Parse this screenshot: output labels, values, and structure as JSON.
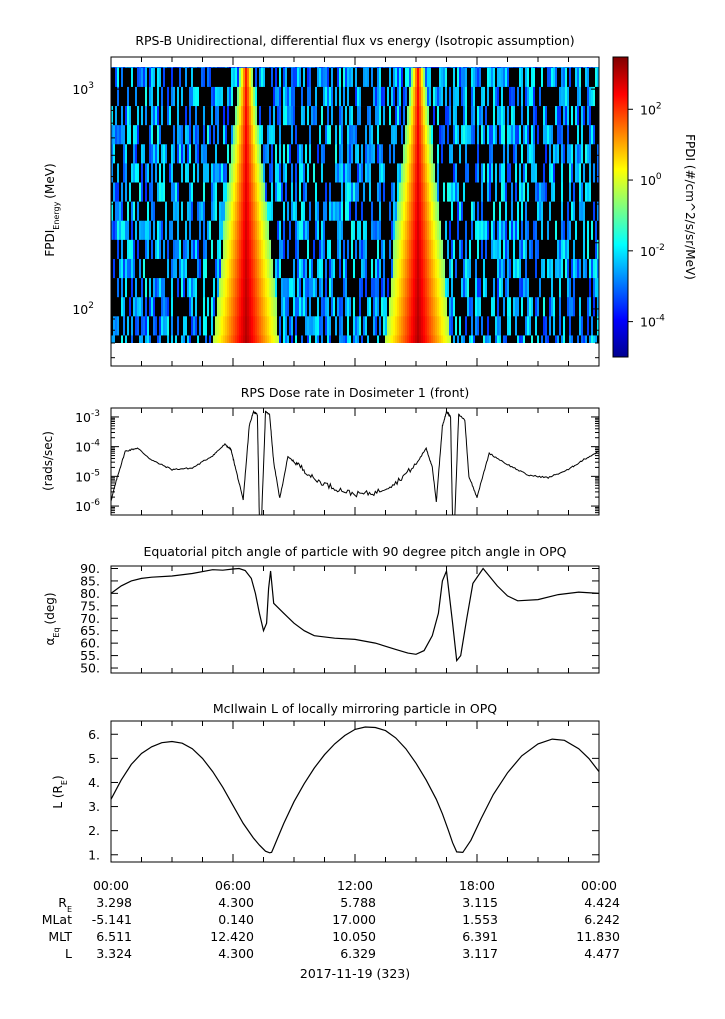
{
  "chart_data": [
    {
      "type": "heatmap",
      "title": "RPS-B  Unidirectional, differential flux vs energy (Isotropic assumption)",
      "ylabel": "FPDI",
      "ylabel_sub": "Energy",
      "ylabel_unit": "(MeV)",
      "yscale": "log",
      "ylim": [
        55,
        1400
      ],
      "y_ticks": [
        {
          "value": 100,
          "base": "10",
          "exp": "2"
        },
        {
          "value": 1000,
          "base": "10",
          "exp": "3"
        }
      ],
      "xlim_hours": [
        0,
        24
      ],
      "features": {
        "flux_peaks_hours": [
          6.7,
          15.1
        ],
        "peak_center_hours": [
          6.65,
          15.1
        ],
        "noise_rows": 15
      },
      "colorbar": {
        "label": "FPDI (#/cm^2/s/sr/MeV)",
        "scale": "log",
        "range": [
          1e-05,
          3000
        ],
        "ticks": [
          {
            "value": 0.0001,
            "base": "10",
            "exp": "-4"
          },
          {
            "value": 0.01,
            "base": "10",
            "exp": "-2"
          },
          {
            "value": 1,
            "base": "10",
            "exp": "0"
          },
          {
            "value": 100,
            "base": "10",
            "exp": "2"
          }
        ],
        "colors": [
          "#00008f",
          "#0000ff",
          "#007fff",
          "#00ffff",
          "#7fff7f",
          "#ffff00",
          "#ff7f00",
          "#ff0000",
          "#7f0000"
        ]
      }
    },
    {
      "type": "line",
      "title": "RPS  Dose rate in Dosimeter 1 (front)",
      "ylabel": "(rads/sec)",
      "yscale": "log",
      "ylim": [
        5e-07,
        0.002
      ],
      "y_ticks": [
        {
          "value": 1e-06,
          "base": "10",
          "exp": "-6"
        },
        {
          "value": 1e-05,
          "base": "10",
          "exp": "-5"
        },
        {
          "value": 0.0001,
          "base": "10",
          "exp": "-4"
        },
        {
          "value": 0.001,
          "base": "10",
          "exp": "-3"
        }
      ],
      "x_hours": [
        0,
        0.3,
        0.7,
        1.3,
        2,
        3,
        4,
        5,
        5.6,
        5.9,
        6.1,
        6.5,
        6.8,
        7.0,
        7.2,
        7.3,
        7.4,
        7.6,
        7.8,
        8.0,
        8.3,
        8.7,
        9.2,
        10,
        11,
        12,
        13,
        14,
        15,
        15.5,
        15.8,
        16.0,
        16.3,
        16.5,
        16.7,
        16.8,
        16.9,
        17.1,
        17.4,
        17.6,
        18,
        18.6,
        19.5,
        20.5,
        21.5,
        22.5,
        23.2,
        24
      ],
      "y_values": [
        1.5e-06,
        9e-06,
        7e-05,
        9e-05,
        3.5e-05,
        1.7e-05,
        1.9e-05,
        5e-05,
        0.00012,
        8e-05,
        2.2e-05,
        1.6e-06,
        0.0005,
        0.0015,
        0.0012,
        3e-07,
        3e-07,
        0.0015,
        0.0012,
        3e-05,
        1.8e-06,
        4.5e-05,
        2.5e-05,
        8e-06,
        4e-06,
        2.5e-06,
        2.8e-06,
        6e-06,
        2.5e-05,
        9e-05,
        2e-05,
        1.4e-06,
        0.0005,
        0.0015,
        0.001,
        3e-07,
        3e-07,
        0.0012,
        0.0008,
        1e-05,
        2e-06,
        6e-05,
        2.5e-05,
        1.1e-05,
        9e-06,
        1.7e-05,
        3.5e-05,
        7e-05
      ]
    },
    {
      "type": "line",
      "title": "Equatorial pitch angle of particle with 90 degree pitch angle in OPQ",
      "ylabel": "α",
      "ylabel_sub": "Eq",
      "ylabel_unit": "(deg)",
      "ylim": [
        48,
        91
      ],
      "y_ticks": [
        50,
        55,
        60,
        65,
        70,
        75,
        80,
        85,
        90
      ],
      "y_tick_labels": [
        "50.",
        "55.",
        "60.",
        "65.",
        "70.",
        "75.",
        "80.",
        "85.",
        "90."
      ],
      "x_hours": [
        0,
        0.5,
        1,
        1.5,
        2,
        3,
        4,
        5,
        5.5,
        6,
        6.3,
        6.6,
        6.9,
        7.1,
        7.3,
        7.5,
        7.65,
        7.75,
        7.85,
        8.0,
        8.5,
        9,
        9.5,
        10,
        11,
        12,
        13,
        14,
        14.6,
        15,
        15.4,
        15.8,
        16.1,
        16.3,
        16.5,
        16.8,
        17.0,
        17.2,
        17.5,
        17.8,
        18.3,
        19,
        19.5,
        20,
        21,
        22,
        23,
        24
      ],
      "y_values": [
        80,
        83,
        85,
        86,
        86.5,
        87,
        88,
        89.5,
        89.3,
        89.8,
        90,
        89.2,
        86,
        80,
        72,
        65,
        68,
        82,
        89,
        76,
        72,
        68,
        65,
        63,
        62,
        61.5,
        60,
        57.5,
        56,
        55.5,
        57,
        63,
        72,
        85,
        89,
        68,
        53,
        55,
        70,
        84,
        90,
        83,
        79,
        77,
        77.5,
        79.5,
        80.5,
        80
      ]
    },
    {
      "type": "line",
      "title": "McIlwain L of locally mirroring particle in OPQ",
      "ylabel": "L (R",
      "ylabel_sub": "E",
      "ylabel_unit": ")",
      "ylim": [
        0.7,
        6.55
      ],
      "y_ticks": [
        1,
        2,
        3,
        4,
        5,
        6
      ],
      "y_tick_labels": [
        "1.",
        "2.",
        "3.",
        "4.",
        "5.",
        "6."
      ],
      "x_hours": [
        0,
        0.5,
        1,
        1.5,
        2,
        2.5,
        3,
        3.5,
        4,
        4.5,
        5,
        5.5,
        6,
        6.5,
        7,
        7.3,
        7.6,
        7.8,
        7.9,
        8.0,
        8.2,
        8.5,
        9,
        9.5,
        10,
        10.5,
        11,
        11.5,
        12,
        12.5,
        13,
        13.5,
        14,
        14.5,
        15,
        15.5,
        16,
        16.3,
        16.6,
        16.8,
        17.0,
        17.3,
        17.7,
        18.2,
        18.8,
        19.5,
        20.2,
        21,
        21.7,
        22.3,
        23,
        23.5,
        24
      ],
      "y_values": [
        3.3,
        4.1,
        4.75,
        5.2,
        5.48,
        5.65,
        5.7,
        5.63,
        5.4,
        5.0,
        4.45,
        3.8,
        3.05,
        2.3,
        1.7,
        1.4,
        1.15,
        1.08,
        1.1,
        1.3,
        1.7,
        2.3,
        3.2,
        3.95,
        4.6,
        5.15,
        5.6,
        5.95,
        6.2,
        6.3,
        6.28,
        6.15,
        5.85,
        5.4,
        4.8,
        4.1,
        3.3,
        2.7,
        2.0,
        1.5,
        1.12,
        1.1,
        1.6,
        2.5,
        3.5,
        4.4,
        5.1,
        5.6,
        5.8,
        5.75,
        5.4,
        5.0,
        4.45
      ]
    }
  ],
  "x_axis": {
    "tick_labels": [
      "00:00",
      "06:00",
      "12:00",
      "18:00",
      "00:00"
    ],
    "date_label": "2017-11-19 (323)"
  },
  "ephemeris": {
    "rows": [
      {
        "label": "R",
        "label_sub": "E",
        "values": [
          "3.298",
          "4.300",
          "5.788",
          "3.115",
          "4.424"
        ]
      },
      {
        "label": "MLat",
        "label_sub": "",
        "values": [
          "-5.141",
          "0.140",
          "17.000",
          "1.553",
          "6.242"
        ]
      },
      {
        "label": "MLT",
        "label_sub": "",
        "values": [
          "6.511",
          "12.420",
          "10.050",
          "6.391",
          "11.830"
        ]
      },
      {
        "label": "L",
        "label_sub": "",
        "values": [
          "3.324",
          "4.300",
          "6.329",
          "3.117",
          "4.477"
        ]
      }
    ]
  }
}
